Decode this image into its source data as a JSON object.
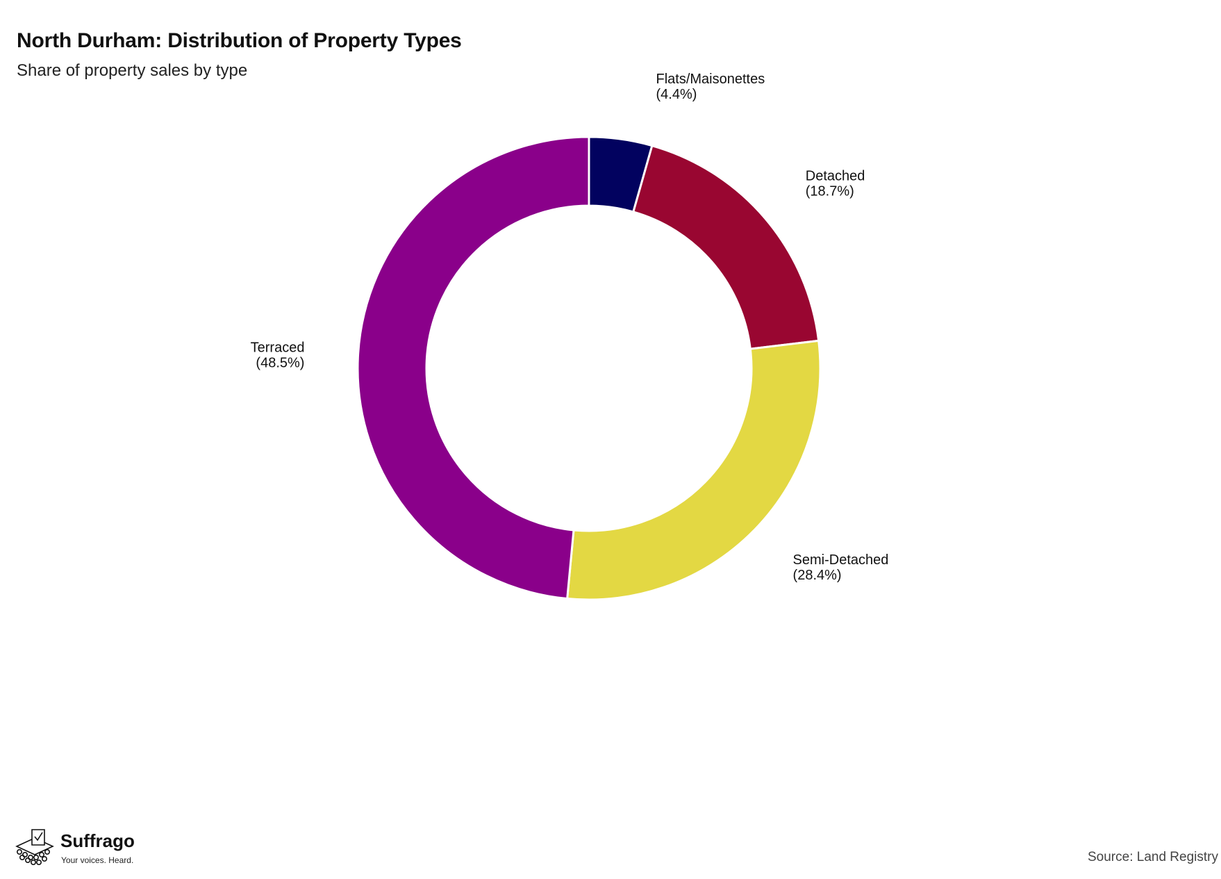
{
  "chart_data": {
    "type": "pie",
    "donut": true,
    "title": "North Durham: Distribution of Property Types",
    "subtitle": "Share of property sales by type",
    "start_angle_deg": 0,
    "direction": "clockwise",
    "slices": [
      {
        "label": "Flats/Maisonettes",
        "value": 4.4,
        "value_label": "(4.4%)",
        "color": "#02025f"
      },
      {
        "label": "Detached",
        "value": 18.7,
        "value_label": "(18.7%)",
        "color": "#990631"
      },
      {
        "label": "Semi-Detached",
        "value": 28.4,
        "value_label": "(28.4%)",
        "color": "#e3d843"
      },
      {
        "label": "Terraced",
        "value": 48.5,
        "value_label": "(48.5%)",
        "color": "#8a008a"
      }
    ],
    "legend": "none"
  },
  "branding": {
    "logo_name": "Suffrago",
    "logo_tagline": "Your voices. Heard."
  },
  "source": "Source: Land Registry"
}
